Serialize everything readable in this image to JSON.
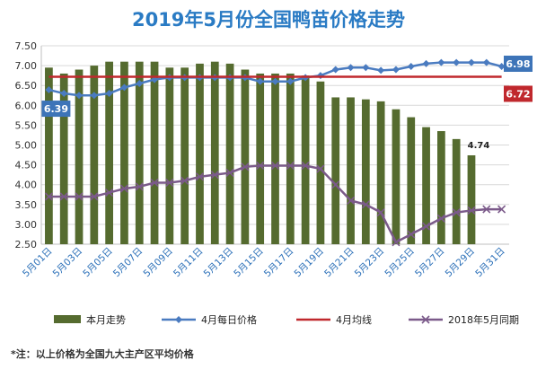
{
  "chart_data": {
    "type": "bar",
    "title": "2019年5月份全国鸭苗价格走势",
    "ylim": [
      2.5,
      7.5
    ],
    "yticks": [
      "2.50",
      "3.00",
      "3.50",
      "4.00",
      "4.50",
      "5.00",
      "5.50",
      "6.00",
      "6.50",
      "7.00",
      "7.50"
    ],
    "ytick_values": [
      2.5,
      3.0,
      3.5,
      4.0,
      4.5,
      5.0,
      5.5,
      6.0,
      6.5,
      7.0,
      7.5
    ],
    "categories": [
      "5月01日",
      "5月02日",
      "5月03日",
      "5月04日",
      "5月05日",
      "5月06日",
      "5月07日",
      "5月08日",
      "5月09日",
      "5月10日",
      "5月11日",
      "5月12日",
      "5月13日",
      "5月14日",
      "5月15日",
      "5月16日",
      "5月17日",
      "5月18日",
      "5月19日",
      "5月20日",
      "5月21日",
      "5月22日",
      "5月23日",
      "5月24日",
      "5月25日",
      "5月26日",
      "5月27日",
      "5月28日",
      "5月29日",
      "5月30日",
      "5月31日"
    ],
    "xtick_labels": [
      "5月01日",
      "5月03日",
      "5月05日",
      "5月07日",
      "5月09日",
      "5月11日",
      "5月13日",
      "5月15日",
      "5月17日",
      "5月19日",
      "5月21日",
      "5月23日",
      "5月25日",
      "5月27日",
      "5月29日",
      "5月31日"
    ],
    "xtick_indices": [
      0,
      2,
      4,
      6,
      8,
      10,
      12,
      14,
      16,
      18,
      20,
      22,
      24,
      26,
      28,
      30
    ],
    "grid": true,
    "legend": "bottom",
    "series": [
      {
        "name": "本月走势",
        "type": "bar",
        "color": "#556b2f",
        "values": [
          6.95,
          6.8,
          6.9,
          7.0,
          7.1,
          7.1,
          7.1,
          7.1,
          6.95,
          6.95,
          7.05,
          7.1,
          7.05,
          6.9,
          6.8,
          6.8,
          6.8,
          6.75,
          6.6,
          6.2,
          6.2,
          6.15,
          6.1,
          5.9,
          5.7,
          5.45,
          5.35,
          5.15,
          4.74,
          null,
          null
        ]
      },
      {
        "name": "4月每日价格",
        "type": "line",
        "color": "#4a7bc0",
        "marker": "diamond",
        "values": [
          6.39,
          6.3,
          6.25,
          6.25,
          6.3,
          6.45,
          6.55,
          6.65,
          6.7,
          6.7,
          6.7,
          6.7,
          6.7,
          6.7,
          6.6,
          6.6,
          6.6,
          6.7,
          6.75,
          6.9,
          6.95,
          6.95,
          6.88,
          6.9,
          6.98,
          7.05,
          7.08,
          7.08,
          7.08,
          7.08,
          6.98
        ]
      },
      {
        "name": "4月均线",
        "type": "line",
        "color": "#c0282d",
        "marker": "none",
        "values": [
          6.72,
          6.72,
          6.72,
          6.72,
          6.72,
          6.72,
          6.72,
          6.72,
          6.72,
          6.72,
          6.72,
          6.72,
          6.72,
          6.72,
          6.72,
          6.72,
          6.72,
          6.72,
          6.72,
          6.72,
          6.72,
          6.72,
          6.72,
          6.72,
          6.72,
          6.72,
          6.72,
          6.72,
          6.72,
          6.72,
          6.72
        ]
      },
      {
        "name": "2018年5月同期",
        "type": "line",
        "color": "#7b5a8a",
        "marker": "x",
        "values": [
          3.7,
          3.7,
          3.7,
          3.7,
          3.8,
          3.9,
          3.95,
          4.05,
          4.05,
          4.1,
          4.2,
          4.25,
          4.3,
          4.45,
          4.48,
          4.48,
          4.48,
          4.48,
          4.4,
          4.0,
          3.6,
          3.5,
          3.3,
          2.55,
          2.75,
          2.95,
          3.15,
          3.3,
          3.35,
          3.38,
          3.38
        ]
      }
    ],
    "annotations": [
      {
        "series": 1,
        "index": 0,
        "text": "6.39",
        "bg": "#3d74b8"
      },
      {
        "series": 1,
        "index": 30,
        "text": "6.98",
        "bg": "#3d74b8"
      },
      {
        "series": 2,
        "index": 30,
        "text": "6.72",
        "bg": "#c0282d"
      },
      {
        "series": 0,
        "index": 28,
        "text": "4.74",
        "bg": "none"
      }
    ],
    "footnote": "*注：以上价格为全国九大主产区平均价格"
  }
}
